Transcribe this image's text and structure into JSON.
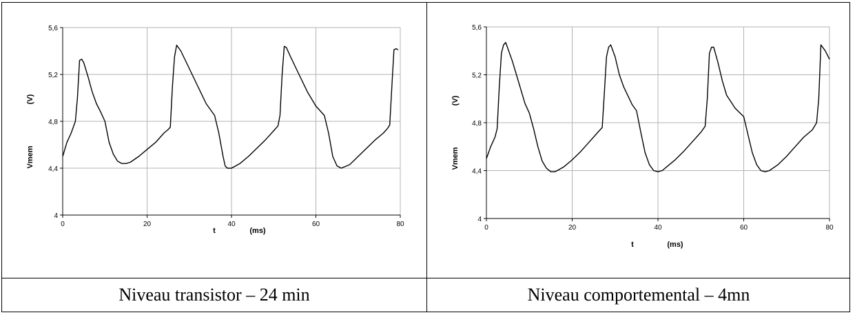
{
  "chart_data": [
    {
      "type": "line",
      "title": "",
      "xlabel": "t",
      "xunit": "(ms)",
      "ylabel": "Vmem",
      "yunit": "(V)",
      "xlim": [
        0,
        80
      ],
      "ylim": [
        4,
        5.6
      ],
      "xticks": [
        0,
        20,
        40,
        60,
        80
      ],
      "yticks": [
        "4",
        "4,4",
        "4,8",
        "5,2",
        "5,6"
      ],
      "yticks_values": [
        4,
        4.4,
        4.8,
        5.2,
        5.6
      ],
      "grid": true,
      "series": [
        {
          "color": "#000000",
          "x": [
            0,
            1,
            2,
            3,
            3.5,
            4,
            4.5,
            5,
            6,
            7,
            8,
            9,
            10,
            11,
            12,
            13,
            14,
            15,
            16,
            18,
            20,
            22,
            24,
            25,
            25.5,
            26,
            26.5,
            27,
            28,
            30,
            32,
            34,
            36,
            37,
            38,
            38.5,
            39,
            40,
            42,
            44,
            46,
            48,
            50,
            51,
            51.5,
            52,
            52.5,
            53,
            54,
            56,
            58,
            60,
            62,
            63,
            64,
            65,
            66,
            68,
            70,
            72,
            74,
            76,
            77,
            77.5,
            78,
            78.5,
            79,
            79.5
          ],
          "y": [
            4.5,
            4.62,
            4.7,
            4.8,
            5.0,
            5.32,
            5.33,
            5.3,
            5.18,
            5.05,
            4.95,
            4.88,
            4.8,
            4.62,
            4.52,
            4.46,
            4.44,
            4.44,
            4.45,
            4.5,
            4.56,
            4.62,
            4.7,
            4.73,
            4.75,
            5.1,
            5.35,
            5.45,
            5.4,
            5.25,
            5.1,
            4.95,
            4.85,
            4.7,
            4.5,
            4.42,
            4.4,
            4.4,
            4.44,
            4.5,
            4.57,
            4.64,
            4.72,
            4.76,
            4.85,
            5.2,
            5.44,
            5.43,
            5.35,
            5.2,
            5.05,
            4.93,
            4.85,
            4.7,
            4.5,
            4.42,
            4.4,
            4.43,
            4.5,
            4.57,
            4.64,
            4.7,
            4.74,
            4.77,
            5.1,
            5.41,
            5.42,
            5.41
          ]
        }
      ]
    },
    {
      "type": "line",
      "title": "",
      "xlabel": "t",
      "xunit": "(ms)",
      "ylabel": "Vmem",
      "yunit": "(V)",
      "xlim": [
        0,
        80
      ],
      "ylim": [
        4,
        5.6
      ],
      "xticks": [
        0,
        20,
        40,
        60,
        80
      ],
      "yticks": [
        "4",
        "4,4",
        "4,8",
        "5,2",
        "5,6"
      ],
      "yticks_values": [
        4,
        4.4,
        4.8,
        5.2,
        5.6
      ],
      "grid": true,
      "series": [
        {
          "color": "#000000",
          "x": [
            0,
            1,
            2,
            2.5,
            3,
            3.5,
            4,
            4.5,
            5,
            6,
            7,
            8,
            9,
            10,
            11,
            12,
            13,
            14,
            15,
            16,
            18,
            20,
            22,
            24,
            26,
            27,
            27.5,
            28,
            28.5,
            29,
            30,
            31,
            32,
            34,
            35,
            36,
            37,
            38,
            39,
            40,
            41,
            42,
            44,
            46,
            48,
            50,
            51,
            51.5,
            52,
            52.5,
            53,
            54,
            55,
            56,
            58,
            60,
            61,
            62,
            63,
            64,
            65,
            66,
            68,
            70,
            72,
            74,
            76,
            77,
            77.5,
            78,
            79,
            80
          ],
          "y": [
            4.5,
            4.6,
            4.68,
            4.75,
            5.1,
            5.38,
            5.45,
            5.47,
            5.42,
            5.32,
            5.2,
            5.08,
            4.96,
            4.88,
            4.75,
            4.6,
            4.48,
            4.42,
            4.39,
            4.39,
            4.43,
            4.49,
            4.56,
            4.64,
            4.72,
            4.76,
            5.05,
            5.35,
            5.43,
            5.45,
            5.35,
            5.2,
            5.1,
            4.95,
            4.9,
            4.72,
            4.55,
            4.45,
            4.4,
            4.39,
            4.4,
            4.43,
            4.49,
            4.56,
            4.64,
            4.72,
            4.77,
            5.0,
            5.38,
            5.43,
            5.43,
            5.3,
            5.15,
            5.03,
            4.92,
            4.85,
            4.7,
            4.55,
            4.45,
            4.4,
            4.39,
            4.4,
            4.45,
            4.52,
            4.6,
            4.68,
            4.74,
            4.8,
            5.0,
            5.45,
            5.4,
            5.33
          ]
        }
      ]
    }
  ],
  "captions": [
    "Niveau transistor – 24 min",
    "Niveau comportemental – 4mn"
  ]
}
